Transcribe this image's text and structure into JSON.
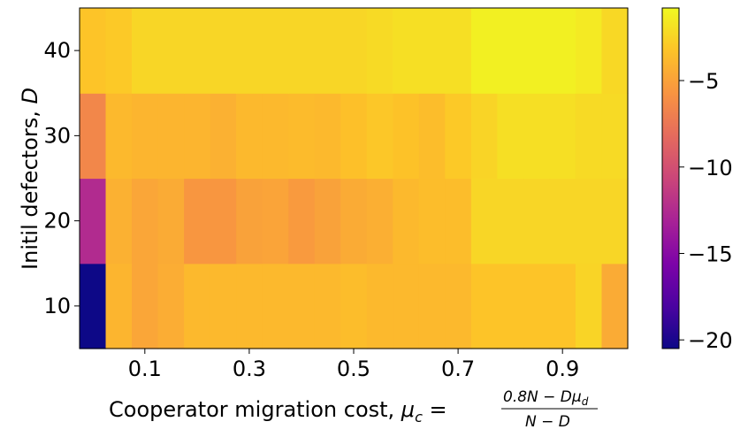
{
  "chart_data": {
    "type": "heatmap",
    "xlabel": {
      "prefix": "Cooperator migration cost, ",
      "mu": "μ",
      "sub_c": "c",
      "equals": " = ",
      "numerator_main": "0.8N − Dμ",
      "numerator_sub": "d",
      "denominator": "N − D"
    },
    "ylabel": {
      "text": "Initil defectors, ",
      "var": "D"
    },
    "x": [
      0.0,
      0.05,
      0.1,
      0.15,
      0.2,
      0.25,
      0.3,
      0.35,
      0.4,
      0.45,
      0.5,
      0.55,
      0.6,
      0.65,
      0.7,
      0.75,
      0.8,
      0.85,
      0.9,
      0.95,
      1.0
    ],
    "y": [
      10,
      20,
      30,
      40
    ],
    "x_ticks": [
      "0.1",
      "0.3",
      "0.5",
      "0.7",
      "0.9"
    ],
    "x_tick_values": [
      0.1,
      0.3,
      0.5,
      0.7,
      0.9
    ],
    "y_ticks": [
      "10",
      "20",
      "30",
      "40"
    ],
    "values": [
      [
        -20.5,
        -4.0,
        -4.8,
        -4.4,
        -3.8,
        -3.8,
        -3.8,
        -3.8,
        -3.8,
        -3.8,
        -3.6,
        -3.8,
        -3.8,
        -3.8,
        -3.8,
        -3.2,
        -3.2,
        -3.2,
        -3.2,
        -2.5,
        -4.5
      ],
      [
        -12.5,
        -4.2,
        -4.8,
        -4.5,
        -5.6,
        -5.6,
        -5.0,
        -4.9,
        -5.4,
        -5.0,
        -4.5,
        -4.3,
        -3.8,
        -3.6,
        -3.6,
        -2.4,
        -2.4,
        -2.4,
        -2.4,
        -2.4,
        -2.4
      ],
      [
        -6.5,
        -3.8,
        -4.0,
        -4.0,
        -4.0,
        -4.2,
        -3.8,
        -3.8,
        -3.7,
        -3.8,
        -3.4,
        -3.1,
        -3.3,
        -3.6,
        -3.0,
        -2.5,
        -2.0,
        -2.0,
        -2.0,
        -2.2,
        -2.2
      ],
      [
        -3.2,
        -3.0,
        -2.4,
        -2.4,
        -2.4,
        -2.4,
        -2.4,
        -2.4,
        -2.4,
        -2.4,
        -2.4,
        -2.2,
        -2.0,
        -2.0,
        -2.0,
        -1.2,
        -1.2,
        -1.2,
        -1.2,
        -1.5,
        -2.3
      ]
    ],
    "colormap": "plasma",
    "vmin": -20.5,
    "vmax": -0.8,
    "colorbar_ticks": [
      "−5",
      "−10",
      "−15",
      "−20"
    ],
    "colorbar_tick_values": [
      -5,
      -10,
      -15,
      -20
    ]
  }
}
